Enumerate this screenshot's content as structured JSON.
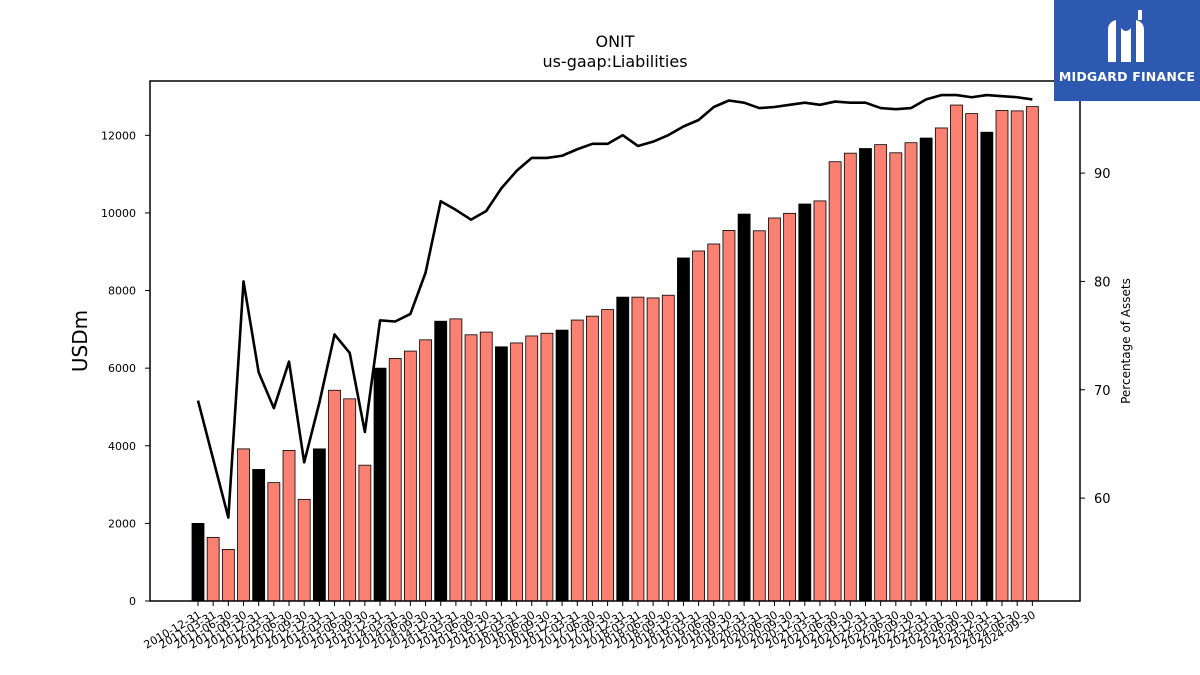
{
  "logo": {
    "text": "MIDGARD FINANCE",
    "icon": "midgard-logo-icon",
    "background": "#2d5ab0"
  },
  "chart_data": {
    "type": "bar",
    "title": "ONIT",
    "subtitle": "us-gaap:Liabilities",
    "ylabel": "USDm",
    "y2label": "Percentage of Assets",
    "ylim": [
      0,
      13400
    ],
    "y2lim": [
      50.5,
      98.5
    ],
    "yticks": [
      0,
      2000,
      4000,
      6000,
      8000,
      10000,
      12000
    ],
    "y2ticks": [
      60,
      70,
      80,
      90
    ],
    "categories": [
      "2010-12-31",
      "2011-03-31",
      "2011-06-30",
      "2011-09-30",
      "2011-12-31",
      "2012-03-31",
      "2012-06-30",
      "2012-09-30",
      "2012-12-31",
      "2013-03-31",
      "2013-06-30",
      "2013-09-30",
      "2013-12-31",
      "2014-03-31",
      "2014-06-30",
      "2014-09-30",
      "2014-12-31",
      "2015-03-31",
      "2015-06-30",
      "2015-09-30",
      "2015-12-31",
      "2016-03-31",
      "2016-06-30",
      "2016-09-30",
      "2016-12-31",
      "2017-03-31",
      "2017-06-30",
      "2017-09-30",
      "2017-12-31",
      "2018-03-31",
      "2018-06-30",
      "2018-09-30",
      "2018-12-31",
      "2019-03-31",
      "2019-06-30",
      "2019-09-30",
      "2019-12-31",
      "2020-03-31",
      "2020-06-30",
      "2020-09-30",
      "2020-12-31",
      "2021-03-31",
      "2021-06-30",
      "2021-09-30",
      "2021-12-31",
      "2022-03-31",
      "2022-06-30",
      "2022-09-30",
      "2022-12-31",
      "2023-03-31",
      "2023-06-30",
      "2023-09-30",
      "2023-12-31",
      "2024-03-31",
      "2024-06-30",
      "2024-09-30"
    ],
    "series": [
      {
        "type": "bar",
        "values": [
          2000,
          1640,
          1330,
          3920,
          3390,
          3050,
          3880,
          2620,
          3920,
          5430,
          5210,
          3500,
          6000,
          6250,
          6440,
          6730,
          7210,
          7270,
          6860,
          6930,
          6550,
          6650,
          6830,
          6900,
          6980,
          7240,
          7340,
          7510,
          7830,
          7830,
          7810,
          7880,
          8840,
          9020,
          9200,
          9550,
          9970,
          9540,
          9870,
          9990,
          10230,
          10310,
          11320,
          11540,
          11660,
          11760,
          11550,
          11810,
          11930,
          12190,
          12780,
          12560,
          12080,
          12640,
          12630,
          12740
        ]
      },
      {
        "type": "line",
        "axis": "right",
        "values": [
          69.0,
          63.6,
          58.2,
          80.0,
          71.6,
          68.3,
          72.6,
          63.3,
          68.8,
          75.1,
          73.4,
          66.1,
          76.4,
          76.3,
          77.0,
          80.8,
          87.4,
          86.6,
          85.7,
          86.5,
          88.6,
          90.2,
          91.4,
          91.4,
          91.6,
          92.2,
          92.7,
          92.7,
          93.5,
          92.5,
          92.9,
          93.5,
          94.3,
          94.9,
          96.1,
          96.7,
          96.5,
          96.0,
          96.1,
          96.3,
          96.5,
          96.3,
          96.6,
          96.5,
          96.5,
          96.0,
          95.9,
          96.0,
          96.8,
          97.2,
          97.2,
          97.0,
          97.2,
          97.1,
          97.0,
          96.8
        ]
      }
    ],
    "colors": {
      "bar_default": "#fa8072",
      "bar_highlight": "#000000",
      "line": "#000000"
    }
  }
}
